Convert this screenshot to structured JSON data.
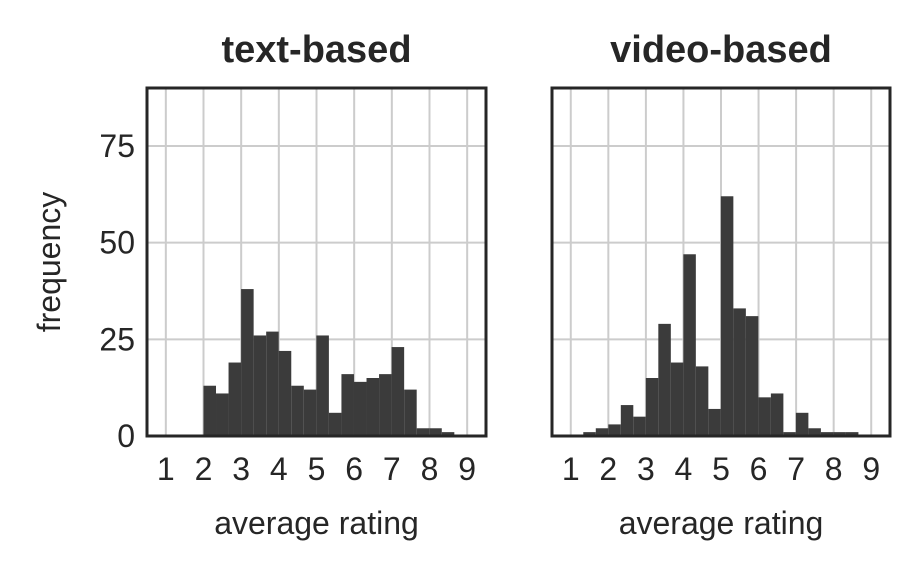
{
  "chart_data": [
    {
      "type": "bar",
      "title": "text-based",
      "xlabel": "average rating",
      "ylabel": "frequency",
      "xlim": [
        0.5,
        9.5
      ],
      "ylim": [
        0,
        90
      ],
      "xticks": [
        1,
        2,
        3,
        4,
        5,
        6,
        7,
        8,
        9
      ],
      "yticks": [
        0,
        25,
        50,
        75
      ],
      "grid": true,
      "bar_color": "#3b3b3b",
      "bin_width": 0.333,
      "bin_start": 1.0,
      "values": [
        0,
        0,
        0,
        13,
        11,
        19,
        38,
        26,
        27,
        22,
        13,
        12,
        26,
        6,
        16,
        14,
        15,
        16,
        23,
        12,
        2,
        2,
        1,
        0
      ]
    },
    {
      "type": "bar",
      "title": "video-based",
      "xlabel": "average rating",
      "ylabel": "",
      "xlim": [
        0.5,
        9.5
      ],
      "ylim": [
        0,
        90
      ],
      "xticks": [
        1,
        2,
        3,
        4,
        5,
        6,
        7,
        8,
        9
      ],
      "yticks": [
        0,
        25,
        50,
        75
      ],
      "grid": true,
      "bar_color": "#3b3b3b",
      "bin_width": 0.333,
      "bin_start": 1.0,
      "values": [
        0,
        1,
        2,
        3,
        8,
        5,
        15,
        29,
        19,
        47,
        18,
        7,
        62,
        33,
        31,
        10,
        11,
        1,
        6,
        2,
        1,
        1,
        1,
        0
      ]
    }
  ]
}
